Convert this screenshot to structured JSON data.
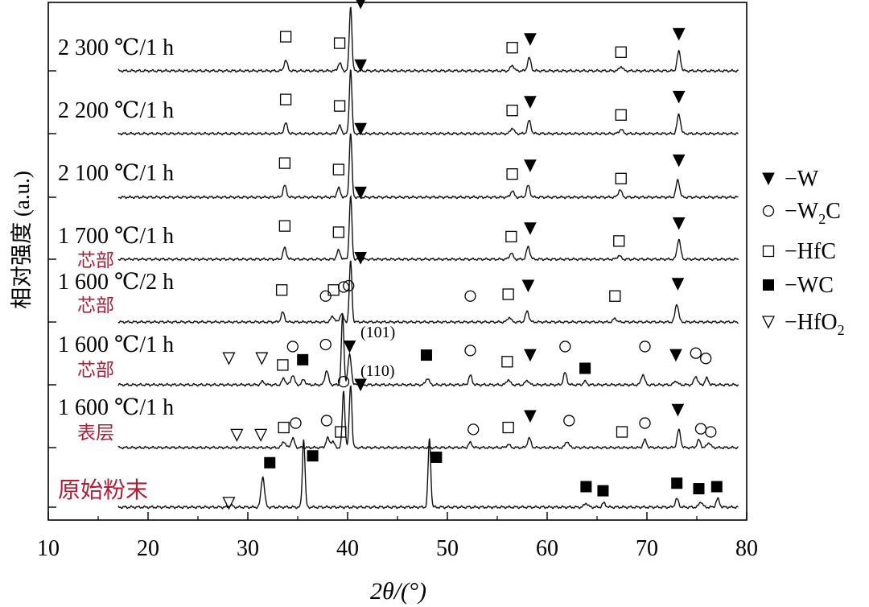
{
  "chart_data": {
    "type": "line",
    "title": "",
    "xlabel": "2θ/(°)",
    "ylabel": "相对强度 (a.u.)",
    "xlim": [
      10,
      80
    ],
    "x_ticks": [
      10,
      20,
      30,
      40,
      50,
      60,
      70,
      80
    ],
    "stacked": true,
    "grid": false,
    "legend_position": "right",
    "legend": [
      {
        "symbol": "W",
        "marker": "filled-triangle-down",
        "label": "−W"
      },
      {
        "symbol": "W2C",
        "marker": "open-circle",
        "label": "−W",
        "sub": "2",
        "suffix": "C"
      },
      {
        "symbol": "HfC",
        "marker": "open-square",
        "label": "−HfC"
      },
      {
        "symbol": "WC",
        "marker": "filled-square",
        "label": "−WC"
      },
      {
        "symbol": "HfO2",
        "marker": "open-triangle-down",
        "label": "−HfO",
        "sub": "2",
        "suffix": ""
      }
    ],
    "annotations": [
      "(101)",
      "(110)"
    ],
    "series": [
      {
        "name": "2 300 ℃/1 h",
        "sublabel": "",
        "peaks": [
          [
            33.8,
            0.16
          ],
          [
            39.2,
            0.12
          ],
          [
            40.3,
            1.0
          ],
          [
            56.5,
            0.09
          ],
          [
            58.2,
            0.2
          ],
          [
            67.4,
            0.07
          ],
          [
            73.2,
            0.3
          ]
        ],
        "markers": [
          [
            "HfC",
            33.8,
            0.53
          ],
          [
            "HfC",
            39.2,
            0.43
          ],
          [
            "W",
            41.3,
            1.06
          ],
          [
            "HfC",
            56.5,
            0.36
          ],
          [
            "W",
            58.3,
            0.49
          ],
          [
            "HfC",
            67.4,
            0.29
          ],
          [
            "W",
            73.2,
            0.57
          ]
        ]
      },
      {
        "name": "2 200 ℃/1 h",
        "sublabel": "",
        "peaks": [
          [
            33.8,
            0.16
          ],
          [
            39.2,
            0.12
          ],
          [
            40.3,
            1.0
          ],
          [
            56.5,
            0.09
          ],
          [
            58.2,
            0.2
          ],
          [
            67.4,
            0.07
          ],
          [
            73.2,
            0.3
          ]
        ],
        "markers": [
          [
            "HfC",
            33.8,
            0.53
          ],
          [
            "HfC",
            39.2,
            0.43
          ],
          [
            "W",
            41.3,
            1.06
          ],
          [
            "HfC",
            56.5,
            0.36
          ],
          [
            "W",
            58.3,
            0.49
          ],
          [
            "HfC",
            67.4,
            0.29
          ],
          [
            "W",
            73.2,
            0.57
          ]
        ]
      },
      {
        "name": "2 100 ℃/1 h",
        "sublabel": "",
        "peaks": [
          [
            33.7,
            0.18
          ],
          [
            39.1,
            0.14
          ],
          [
            40.3,
            1.0
          ],
          [
            56.5,
            0.1
          ],
          [
            58.1,
            0.18
          ],
          [
            67.3,
            0.12
          ],
          [
            73.1,
            0.27
          ]
        ],
        "markers": [
          [
            "HfC",
            33.7,
            0.53
          ],
          [
            "HfC",
            39.1,
            0.43
          ],
          [
            "W",
            41.3,
            1.06
          ],
          [
            "HfC",
            56.5,
            0.36
          ],
          [
            "W",
            58.3,
            0.49
          ],
          [
            "HfC",
            67.4,
            0.29
          ],
          [
            "W",
            73.2,
            0.57
          ]
        ]
      },
      {
        "name": "1 700 ℃/1 h",
        "sublabel": "芯部",
        "peaks": [
          [
            33.7,
            0.18
          ],
          [
            39.1,
            0.14
          ],
          [
            40.3,
            1.0
          ],
          [
            56.4,
            0.1
          ],
          [
            58.1,
            0.2
          ],
          [
            67.2,
            0.06
          ],
          [
            73.2,
            0.32
          ]
        ],
        "markers": [
          [
            "HfC",
            33.7,
            0.53
          ],
          [
            "HfC",
            39.1,
            0.43
          ],
          [
            "W",
            41.3,
            1.06
          ],
          [
            "HfC",
            56.4,
            0.36
          ],
          [
            "W",
            58.3,
            0.49
          ],
          [
            "HfC",
            67.2,
            0.29
          ],
          [
            "W",
            73.2,
            0.57
          ]
        ]
      },
      {
        "name": "1 600  ℃/2 h",
        "sublabel": "芯部",
        "peaks": [
          [
            33.5,
            0.16
          ],
          [
            38.5,
            0.1
          ],
          [
            39.4,
            0.14
          ],
          [
            40.3,
            1.0
          ],
          [
            56.2,
            0.08
          ],
          [
            58.0,
            0.18
          ],
          [
            66.8,
            0.06
          ],
          [
            73.0,
            0.3
          ]
        ],
        "markers": [
          [
            "HfC",
            33.4,
            0.53
          ],
          [
            "W2C",
            37.8,
            0.43
          ],
          [
            "HfC",
            38.6,
            0.53
          ],
          [
            "W2C",
            39.6,
            0.58
          ],
          [
            "W",
            41.3,
            1.06
          ],
          [
            "W2C",
            52.3,
            0.43
          ],
          [
            "HfC",
            56.1,
            0.46
          ],
          [
            "W",
            58.1,
            0.6
          ],
          [
            "HfC",
            66.8,
            0.43
          ],
          [
            "W",
            73.1,
            0.63
          ]
        ]
      },
      {
        "name": "1 600 ℃/1 h",
        "sublabel": "芯部",
        "peaks": [
          [
            31.5,
            0.05
          ],
          [
            33.6,
            0.1
          ],
          [
            34.5,
            0.15
          ],
          [
            35.6,
            0.08
          ],
          [
            37.9,
            0.22
          ],
          [
            39.5,
            1.05
          ],
          [
            40.2,
            0.45
          ],
          [
            48.0,
            0.1
          ],
          [
            52.3,
            0.14
          ],
          [
            56.1,
            0.08
          ],
          [
            58.0,
            0.07
          ],
          [
            61.8,
            0.18
          ],
          [
            63.8,
            0.05
          ],
          [
            69.6,
            0.16
          ],
          [
            72.9,
            0.06
          ],
          [
            74.9,
            0.13
          ],
          [
            76.0,
            0.1
          ]
        ],
        "markers": [
          [
            "HfO2",
            28.1,
            0.4
          ],
          [
            "HfO2",
            31.4,
            0.4
          ],
          [
            "HfC",
            33.5,
            0.3
          ],
          [
            "W2C",
            34.5,
            0.58
          ],
          [
            "WC",
            35.5,
            0.38
          ],
          [
            "W2C",
            37.8,
            0.61
          ],
          [
            "W2C",
            40.1,
            1.5
          ],
          [
            "W",
            40.2,
            0.58
          ],
          [
            "WC",
            47.9,
            0.45
          ],
          [
            "W2C",
            52.3,
            0.52
          ],
          [
            "HfC",
            56.0,
            0.35
          ],
          [
            "W",
            58.3,
            0.45
          ],
          [
            "W2C",
            61.8,
            0.58
          ],
          [
            "WC",
            63.8,
            0.25
          ],
          [
            "W2C",
            69.8,
            0.58
          ],
          [
            "W",
            72.9,
            0.45
          ],
          [
            "W2C",
            74.9,
            0.48
          ],
          [
            "W2C",
            75.9,
            0.4
          ]
        ]
      },
      {
        "name": "1 600 ℃/1 h",
        "sublabel": "表层",
        "peaks": [
          [
            33.6,
            0.1
          ],
          [
            34.5,
            0.15
          ],
          [
            38.0,
            0.15
          ],
          [
            38.5,
            0.1
          ],
          [
            39.6,
            0.9
          ],
          [
            40.3,
            1.0
          ],
          [
            52.3,
            0.08
          ],
          [
            56.1,
            0.05
          ],
          [
            58.2,
            0.15
          ],
          [
            62.0,
            0.1
          ],
          [
            69.8,
            0.12
          ],
          [
            73.2,
            0.28
          ],
          [
            75.2,
            0.12
          ],
          [
            76.2,
            0.08
          ]
        ],
        "markers": [
          [
            "HfO2",
            28.9,
            0.2
          ],
          [
            "HfO2",
            31.3,
            0.2
          ],
          [
            "HfC",
            33.6,
            0.32
          ],
          [
            "W2C",
            34.8,
            0.39
          ],
          [
            "W2C",
            37.9,
            0.43
          ],
          [
            "HfC",
            39.3,
            0.25
          ],
          [
            "W2C",
            39.6,
            1.05
          ],
          [
            "W",
            41.3,
            1.0
          ],
          [
            "W2C",
            52.6,
            0.29
          ],
          [
            "HfC",
            56.1,
            0.32
          ],
          [
            "W",
            58.3,
            0.5
          ],
          [
            "W2C",
            62.2,
            0.43
          ],
          [
            "HfC",
            67.5,
            0.25
          ],
          [
            "W2C",
            69.8,
            0.39
          ],
          [
            "W",
            73.1,
            0.6
          ],
          [
            "W2C",
            75.4,
            0.3
          ],
          [
            "W2C",
            76.4,
            0.25
          ]
        ]
      },
      {
        "name": "原始粉末",
        "sublabel": "",
        "peaks": [
          [
            28.3,
            0.03
          ],
          [
            31.5,
            0.45
          ],
          [
            35.6,
            1.0
          ],
          [
            48.2,
            1.0
          ],
          [
            63.9,
            0.06
          ],
          [
            65.7,
            0.06
          ],
          [
            73.0,
            0.12
          ],
          [
            75.4,
            0.08
          ],
          [
            77.1,
            0.12
          ]
        ],
        "markers": [
          [
            "WC",
            32.2,
            0.65
          ],
          [
            "WC",
            36.5,
            0.75
          ],
          [
            "WC",
            48.9,
            0.73
          ],
          [
            "HfO2",
            28.1,
            0.06
          ],
          [
            "WC",
            63.9,
            0.3
          ],
          [
            "WC",
            65.6,
            0.24
          ],
          [
            "WC",
            73.0,
            0.35
          ],
          [
            "WC",
            75.2,
            0.27
          ],
          [
            "WC",
            77.0,
            0.3
          ]
        ]
      }
    ]
  }
}
